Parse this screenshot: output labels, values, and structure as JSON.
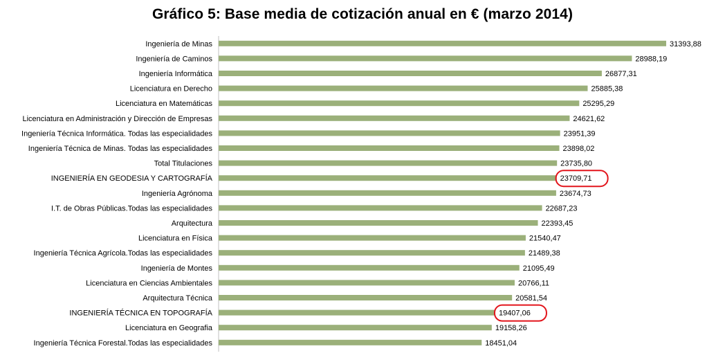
{
  "chart_data": {
    "type": "bar",
    "orientation": "horizontal",
    "title": "Gráfico 5: Base media de cotización anual en € (marzo 2014)",
    "xlabel": "",
    "ylabel": "",
    "xlim": [
      0,
      31393.88
    ],
    "grid": false,
    "legend": "none",
    "bar_color": "#9bb07a",
    "highlight_color": "#e2141b",
    "categories": [
      "Ingeniería de Minas",
      "Ingeniería de Caminos",
      "Ingeniería Informática",
      "Licenciatura  en Derecho",
      "Licenciatura en Matemáticas",
      "Licenciatura en Administración  y Dirección de Empresas",
      "Ingeniería Técnica Informática.  Todas las especialidades",
      "Ingeniería Técnica de Minas. Todas las especialidades",
      "Total Titulaciones",
      "INGENIERÍA  EN GEODESIA  Y CARTOGRAFÍA",
      "Ingeniería Agrónoma",
      "I.T. de Obras Públicas.Todas las especialidades",
      "Arquitectura",
      "Licenciatura  en Física",
      "Ingeniería Técnica Agrícola.Todas las especialidades",
      "Ingeniería de Montes",
      "Licenciatura  en Ciencias Ambientales",
      "Arquitectura Técnica",
      "INGENIERÍA  TÉCNICA  EN TOPOGRAFÍA",
      "Licenciatura en Geografia",
      "Ingeniería Técnica Forestal.Todas las especialidades"
    ],
    "values": [
      31393.88,
      28988.19,
      26877.31,
      25885.38,
      25295.29,
      24621.62,
      23951.39,
      23898.02,
      23735.8,
      23709.71,
      23674.73,
      22687.23,
      22393.45,
      21540.47,
      21489.38,
      21095.49,
      20766.11,
      20581.54,
      19407.06,
      19158.26,
      18451.04
    ],
    "value_labels": [
      "31393,88",
      "28988,19",
      "26877,31",
      "25885,38",
      "25295,29",
      "24621,62",
      "23951,39",
      "23898,02",
      "23735,80",
      "23709,71",
      "23674,73",
      "22687,23",
      "22393,45",
      "21540,47",
      "21489,38",
      "21095,49",
      "20766,11",
      "20581,54",
      "19407,06",
      "19158,26",
      "18451,04"
    ],
    "highlighted": [
      "INGENIERÍA  EN GEODESIA  Y CARTOGRAFÍA",
      "INGENIERÍA  TÉCNICA  EN TOPOGRAFÍA"
    ]
  }
}
